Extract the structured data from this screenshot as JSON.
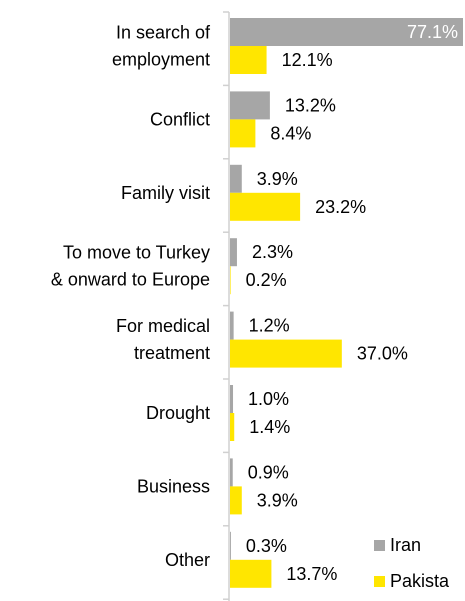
{
  "chart_data": {
    "type": "bar",
    "orientation": "horizontal",
    "categories": [
      [
        "In search of",
        "employment"
      ],
      [
        "Conflict"
      ],
      [
        "Family visit"
      ],
      [
        "To move to Turkey",
        "& onward to Europe"
      ],
      [
        "For medical",
        "treatment"
      ],
      [
        "Drought"
      ],
      [
        "Business"
      ],
      [
        "Other"
      ]
    ],
    "series": [
      {
        "name": "Iran",
        "color": "#A6A6A6",
        "values": [
          77.1,
          13.2,
          3.9,
          2.3,
          1.2,
          1.0,
          0.9,
          0.3
        ]
      },
      {
        "name": "Pakista",
        "color": "#FFE600",
        "values": [
          12.1,
          8.4,
          23.2,
          0.2,
          37.0,
          1.4,
          3.9,
          13.7
        ]
      }
    ],
    "value_suffix": "%",
    "xlim": [
      0,
      77.1
    ],
    "grid": false,
    "legend_position": "bottom-right"
  }
}
